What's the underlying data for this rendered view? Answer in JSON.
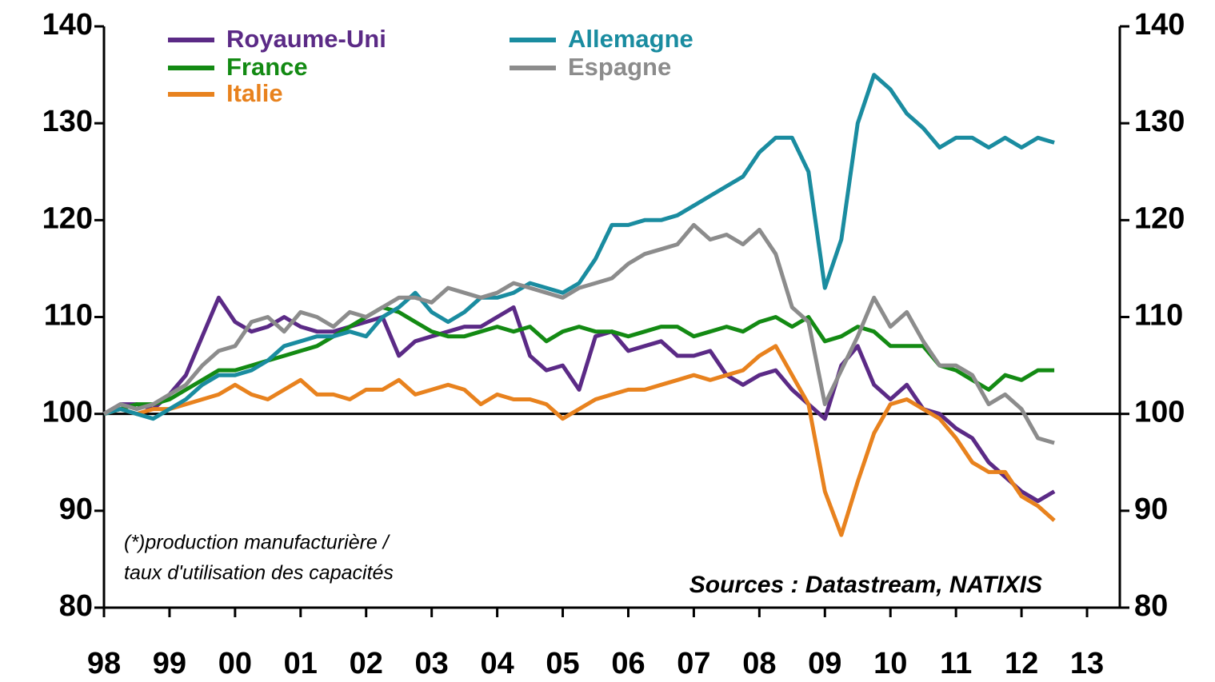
{
  "chart_data": {
    "type": "line",
    "annotations": [
      "(*)production manufacturière /",
      "taux d'utilisation des capacités"
    ],
    "source": "Sources : Datastream, NATIXIS",
    "x": [
      1998,
      1998.25,
      1998.5,
      1998.75,
      1999,
      1999.25,
      1999.5,
      1999.75,
      2000,
      2000.25,
      2000.5,
      2000.75,
      2001,
      2001.25,
      2001.5,
      2001.75,
      2002,
      2002.25,
      2002.5,
      2002.75,
      2003,
      2003.25,
      2003.5,
      2003.75,
      2004,
      2004.25,
      2004.5,
      2004.75,
      2005,
      2005.25,
      2005.5,
      2005.75,
      2006,
      2006.25,
      2006.5,
      2006.75,
      2007,
      2007.25,
      2007.5,
      2007.75,
      2008,
      2008.25,
      2008.5,
      2008.75,
      2009,
      2009.25,
      2009.5,
      2009.75,
      2010,
      2010.25,
      2010.5,
      2010.75,
      2011,
      2011.25,
      2011.5,
      2011.75,
      2012,
      2012.25,
      2012.5
    ],
    "series": [
      {
        "name": "Royaume-Uni",
        "color": "#5b2a86",
        "values": [
          100,
          101,
          101,
          100.5,
          102,
          104,
          108,
          112,
          109.5,
          108.5,
          109,
          110,
          109,
          108.5,
          108.5,
          109,
          109.5,
          110,
          106,
          107.5,
          108,
          108.5,
          109,
          109,
          110,
          111,
          106,
          104.5,
          105,
          102.5,
          108,
          108.5,
          106.5,
          107,
          107.5,
          106,
          106,
          106.5,
          104,
          103,
          104,
          104.5,
          102.5,
          101,
          99.5,
          105,
          107,
          103,
          101.5,
          103,
          100.5,
          100,
          98.5,
          97.5,
          95,
          93.5,
          92,
          91,
          92
        ]
      },
      {
        "name": "France",
        "color": "#138a13",
        "values": [
          100,
          100.5,
          101,
          101,
          101.5,
          102.5,
          103.5,
          104.5,
          104.5,
          105,
          105.5,
          106,
          106.5,
          107,
          108,
          109,
          110,
          111,
          110.5,
          109.5,
          108.5,
          108,
          108,
          108.5,
          109,
          108.5,
          109,
          107.5,
          108.5,
          109,
          108.5,
          108.5,
          108,
          108.5,
          109,
          109,
          108,
          108.5,
          109,
          108.5,
          109.5,
          110,
          109,
          110,
          107.5,
          108,
          109,
          108.5,
          107,
          107,
          107,
          105,
          104.5,
          103.5,
          102.5,
          104,
          103.5,
          104.5,
          104.5
        ]
      },
      {
        "name": "Italie",
        "color": "#e8821e",
        "values": [
          100,
          100.5,
          100,
          100.5,
          100.5,
          101,
          101.5,
          102,
          103,
          102,
          101.5,
          102.5,
          103.5,
          102,
          102,
          101.5,
          102.5,
          102.5,
          103.5,
          102,
          102.5,
          103,
          102.5,
          101,
          102,
          101.5,
          101.5,
          101,
          99.5,
          100.5,
          101.5,
          102,
          102.5,
          102.5,
          103,
          103.5,
          104,
          103.5,
          104,
          104.5,
          106,
          107,
          104,
          101,
          92,
          87.5,
          93,
          98,
          101,
          101.5,
          100.5,
          99.5,
          97.5,
          95,
          94,
          94,
          91.5,
          90.5,
          89
        ]
      },
      {
        "name": "Allemagne",
        "color": "#1a8ca0",
        "values": [
          100,
          100.5,
          100,
          99.5,
          100.5,
          101.5,
          103,
          104,
          104,
          104.5,
          105.5,
          107,
          107.5,
          108,
          108,
          108.5,
          108,
          110,
          111,
          112.5,
          110.5,
          109.5,
          110.5,
          112,
          112,
          112.5,
          113.5,
          113,
          112.5,
          113.5,
          116,
          119.5,
          119.5,
          120,
          120,
          120.5,
          121.5,
          122.5,
          123.5,
          124.5,
          127,
          128.5,
          128.5,
          125,
          113,
          118,
          130,
          135,
          133.5,
          131,
          129.5,
          127.5,
          128.5,
          128.5,
          127.5,
          128.5,
          127.5,
          128.5,
          128
        ]
      },
      {
        "name": "Espagne",
        "color": "#8c8c8c",
        "values": [
          100,
          101,
          100.5,
          101,
          102,
          103,
          105,
          106.5,
          107,
          109.5,
          110,
          108.5,
          110.5,
          110,
          109,
          110.5,
          110,
          111,
          112,
          112,
          111.5,
          113,
          112.5,
          112,
          112.5,
          113.5,
          113,
          112.5,
          112,
          113,
          113.5,
          114,
          115.5,
          116.5,
          117,
          117.5,
          119.5,
          118,
          118.5,
          117.5,
          119,
          116.5,
          111,
          109.5,
          101,
          104.5,
          108,
          112,
          109,
          110.5,
          107.5,
          105,
          105,
          104,
          101,
          102,
          100.5,
          97.5,
          97
        ]
      }
    ],
    "xlim": [
      1998,
      2013.5
    ],
    "xticks": [
      {
        "value": 1998,
        "label": "98"
      },
      {
        "value": 1999,
        "label": "99"
      },
      {
        "value": 2000,
        "label": "00"
      },
      {
        "value": 2001,
        "label": "01"
      },
      {
        "value": 2002,
        "label": "02"
      },
      {
        "value": 2003,
        "label": "03"
      },
      {
        "value": 2004,
        "label": "04"
      },
      {
        "value": 2005,
        "label": "05"
      },
      {
        "value": 2006,
        "label": "06"
      },
      {
        "value": 2007,
        "label": "07"
      },
      {
        "value": 2008,
        "label": "08"
      },
      {
        "value": 2009,
        "label": "09"
      },
      {
        "value": 2010,
        "label": "10"
      },
      {
        "value": 2011,
        "label": "11"
      },
      {
        "value": 2012,
        "label": "12"
      },
      {
        "value": 2013,
        "label": "13"
      }
    ],
    "ylim": [
      80,
      140
    ],
    "yticks": [
      80,
      90,
      100,
      110,
      120,
      130,
      140
    ],
    "y2lim": [
      80,
      140
    ],
    "y2ticks": [
      80,
      90,
      100,
      110,
      120,
      130,
      140
    ],
    "hline": 100
  }
}
